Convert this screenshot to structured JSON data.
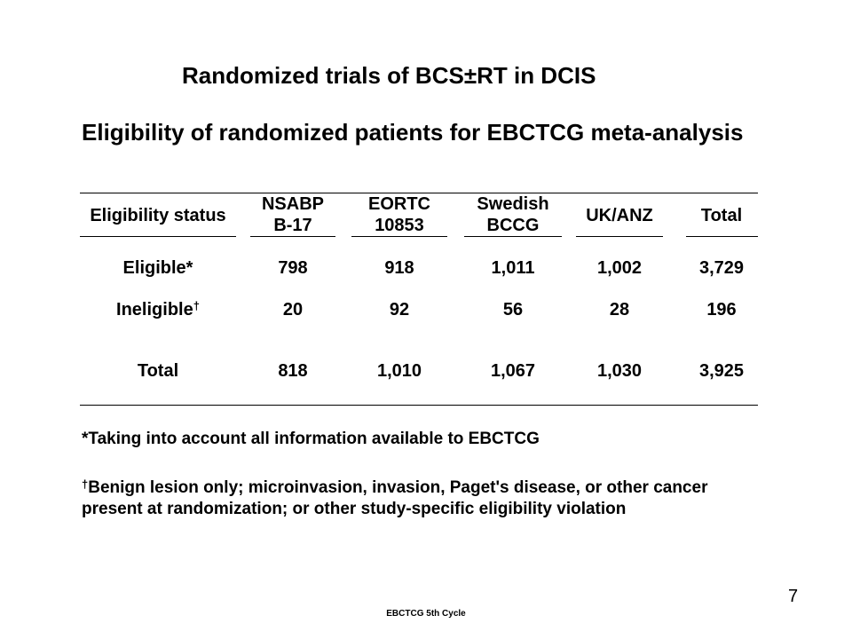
{
  "title": "Randomized trials of BCS±RT in DCIS",
  "subtitle": "Eligibility of randomized patients for EBCTCG meta-analysis",
  "table": {
    "columns": [
      {
        "line1": "Eligibility status",
        "line2": ""
      },
      {
        "line1": "NSABP",
        "line2": "B-17"
      },
      {
        "line1": "EORTC",
        "line2": "10853"
      },
      {
        "line1": "Swedish",
        "line2": "BCCG"
      },
      {
        "line1": "UK/ANZ",
        "line2": ""
      },
      {
        "line1": "Total",
        "line2": ""
      }
    ],
    "rows": [
      {
        "label": "Eligible*",
        "label_mark": "",
        "values": [
          "798",
          "918",
          "1,011",
          "1,002",
          "3,729"
        ]
      },
      {
        "label": "Ineligible",
        "label_mark": "†",
        "values": [
          "20",
          "92",
          "56",
          "28",
          "196"
        ]
      },
      {
        "label": "Total",
        "label_mark": "",
        "values": [
          "818",
          "1,010",
          "1,067",
          "1,030",
          "3,925"
        ]
      }
    ]
  },
  "footnotes": {
    "asterisk": "*Taking into account all information available to EBCTCG",
    "dagger_mark": "†",
    "dagger_line1": "Benign lesion only; microinvasion, invasion, Paget's disease, or other cancer",
    "dagger_line2": "present at randomization; or other study-specific eligibility violation"
  },
  "page_number": "7",
  "footer": "EBCTCG 5th Cycle"
}
